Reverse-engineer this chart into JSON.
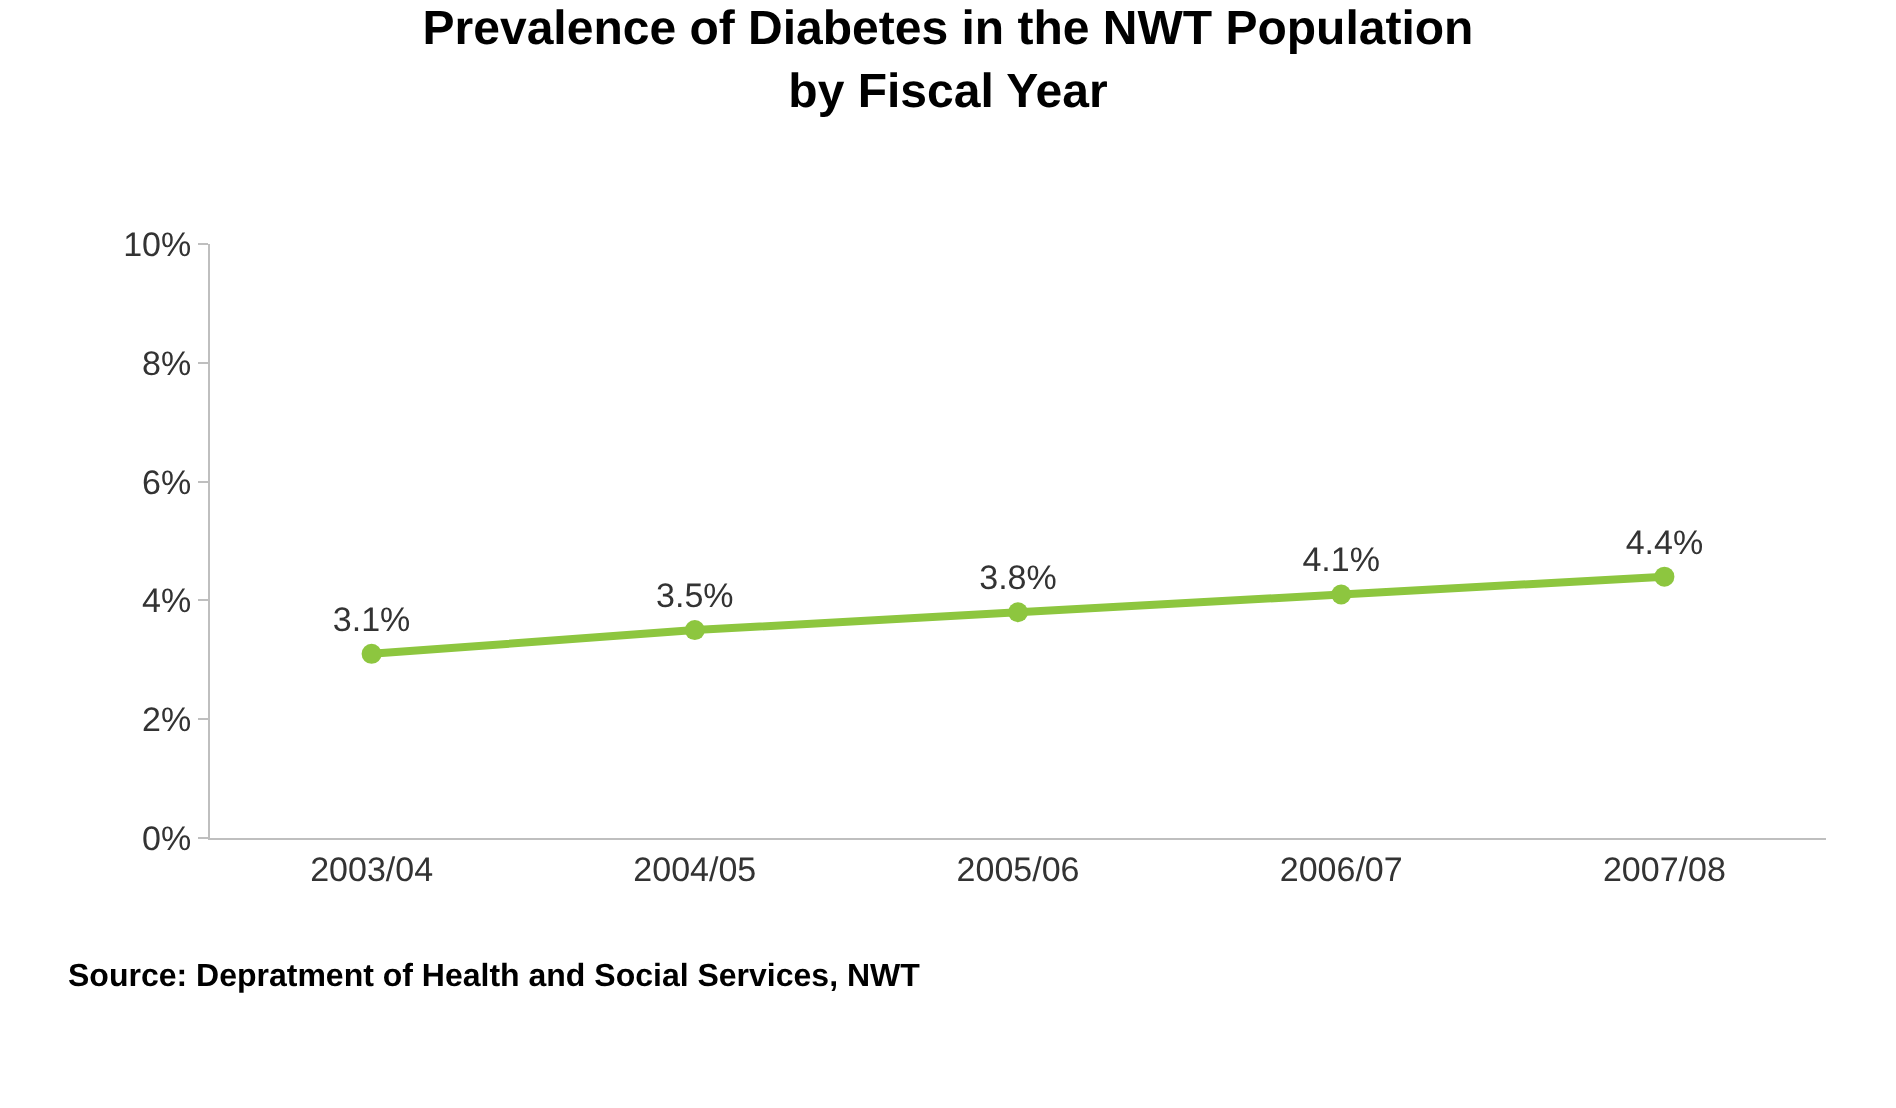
{
  "chart_data": {
    "type": "line",
    "title": "Prevalence of Diabetes in the NWT Population\nby Fiscal Year",
    "categories": [
      "2003/04",
      "2004/05",
      "2005/06",
      "2006/07",
      "2007/08"
    ],
    "series": [
      {
        "color": "#8dc63f",
        "values": [
          3.1,
          3.5,
          3.8,
          4.1,
          4.4
        ],
        "value_labels": [
          "3.1%",
          "3.5%",
          "3.8%",
          "4.1%",
          "4.4%"
        ]
      }
    ],
    "ylim": [
      0,
      10
    ],
    "yticks": [
      {
        "value": 0,
        "label": "0%"
      },
      {
        "value": 2,
        "label": "2%"
      },
      {
        "value": 4,
        "label": "4%"
      },
      {
        "value": 6,
        "label": "6%"
      },
      {
        "value": 8,
        "label": "8%"
      },
      {
        "value": 10,
        "label": "10%"
      }
    ],
    "marker": "circle",
    "line_style": "solid",
    "annotations": [
      "Source: Depratment of Health and Social Services, NWT"
    ]
  }
}
